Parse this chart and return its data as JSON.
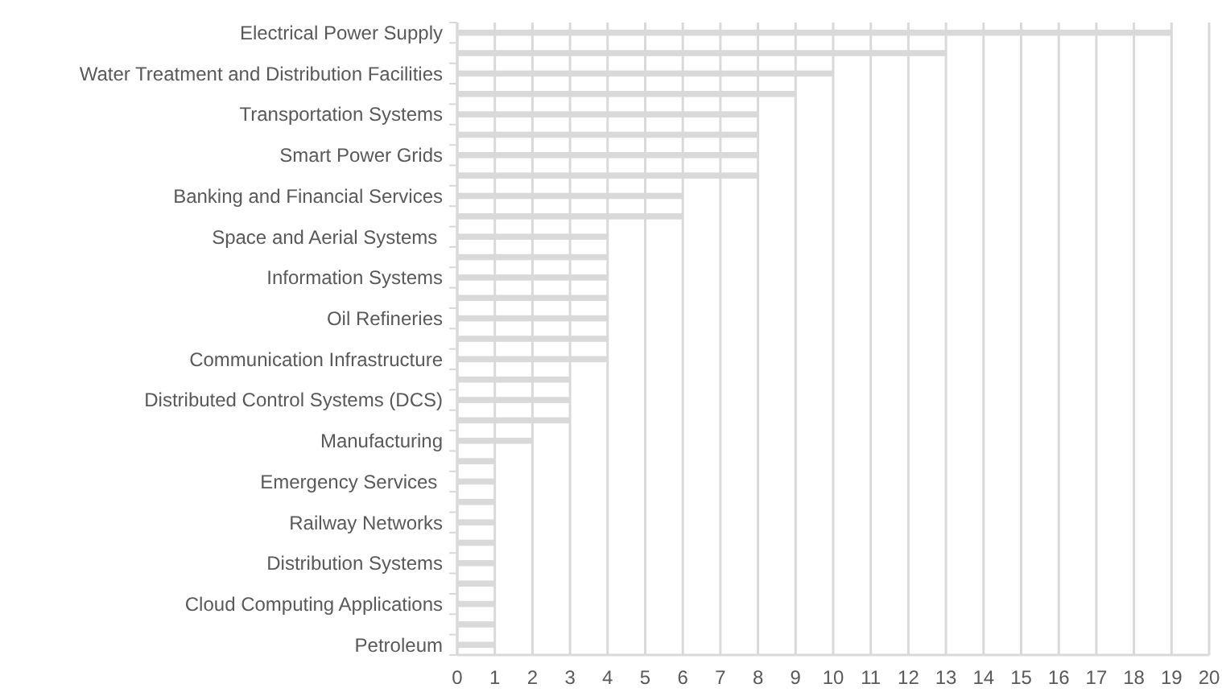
{
  "chart_data": {
    "type": "bar",
    "orientation": "horizontal",
    "categories": [
      "Electrical Power Supply",
      null,
      "Water Treatment and Distribution Facilities",
      null,
      "Transportation Systems",
      null,
      "Smart Power Grids",
      null,
      "Banking and Financial Services",
      null,
      "Space and Aerial Systems ",
      null,
      "Information Systems",
      null,
      "Oil Refineries",
      null,
      "Communication Infrastructure",
      null,
      "Distributed Control Systems (DCS)",
      null,
      "Manufacturing",
      null,
      "Emergency Services ",
      null,
      "Railway Networks",
      null,
      "Distribution Systems",
      null,
      "Cloud Computing Applications",
      null,
      "Petroleum"
    ],
    "values": [
      19,
      13,
      10,
      9,
      8,
      8,
      8,
      8,
      6,
      6,
      4,
      4,
      4,
      4,
      4,
      4,
      4,
      3,
      3,
      3,
      2,
      1,
      1,
      1,
      1,
      1,
      1,
      1,
      1,
      1,
      1
    ],
    "color": "#d9d9d9",
    "xlim": [
      0,
      20
    ],
    "xticks": [
      0,
      1,
      2,
      3,
      4,
      5,
      6,
      7,
      8,
      9,
      10,
      11,
      12,
      13,
      14,
      15,
      16,
      17,
      18,
      19,
      20
    ],
    "grid": "x"
  }
}
